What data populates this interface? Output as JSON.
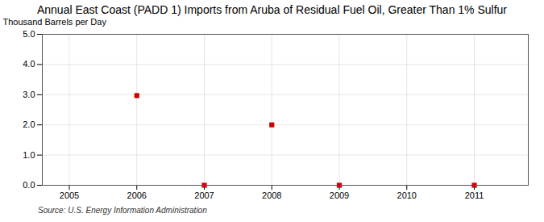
{
  "chart_data": {
    "type": "scatter",
    "title": "Annual East Coast (PADD 1) Imports from Aruba of Residual Fuel Oil, Greater Than 1% Sulfur",
    "ylabel": "Thousand Barrels per Day",
    "source": "Source: U.S. Energy Information Administration",
    "x": [
      2006,
      2007,
      2008,
      2009,
      2011
    ],
    "values": [
      2.97,
      0.0,
      2.0,
      0.0,
      0.0
    ],
    "color": "#cc0000",
    "marker": "square",
    "xlim": [
      2004.6,
      2011.8
    ],
    "ylim": [
      0.0,
      5.0
    ],
    "xticks": [
      2005,
      2006,
      2007,
      2008,
      2009,
      2010,
      2011
    ],
    "yticks": [
      {
        "value": 0.0,
        "label": "0.0"
      },
      {
        "value": 1.0,
        "label": "1.0"
      },
      {
        "value": 2.0,
        "label": "2.0"
      },
      {
        "value": 3.0,
        "label": "3.0"
      },
      {
        "value": 4.0,
        "label": "4.0"
      },
      {
        "value": 5.0,
        "label": "5.0"
      }
    ],
    "grid": true
  }
}
